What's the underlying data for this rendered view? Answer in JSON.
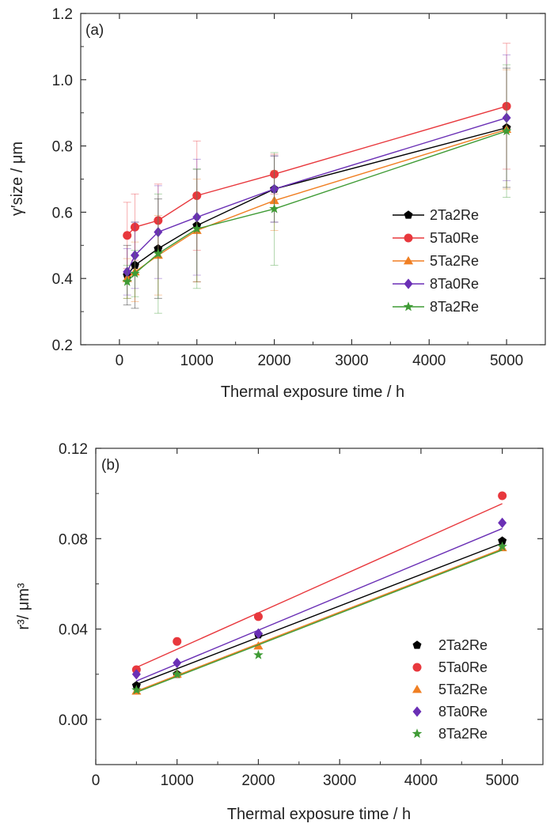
{
  "chart_data": [
    {
      "type": "line",
      "panel_label": "(a)",
      "xlabel": "Thermal exposure time / h",
      "ylabel": "γ′size / μm",
      "xlim": [
        -500,
        5500
      ],
      "ylim": [
        0.2,
        1.2
      ],
      "xticks": [
        0,
        1000,
        2000,
        3000,
        4000,
        5000
      ],
      "yticks": [
        0.2,
        0.4,
        0.6,
        0.8,
        1.0,
        1.2
      ],
      "xtick_labels": [
        "0",
        "1000",
        "2000",
        "3000",
        "4000",
        "5000"
      ],
      "ytick_labels": [
        "0.2",
        "0.4",
        "0.6",
        "0.8",
        "1.0",
        "1.2"
      ],
      "legend_position": "bottom-right",
      "error_bars": true,
      "x": [
        100,
        200,
        500,
        1000,
        2000,
        5000
      ],
      "series": [
        {
          "name": "2Ta2Re",
          "color": "#000000",
          "marker": "pentagon",
          "values": [
            0.41,
            0.44,
            0.49,
            0.56,
            0.67,
            0.855
          ],
          "errors": [
            0.09,
            0.13,
            0.15,
            0.17,
            0.1,
            0.18
          ]
        },
        {
          "name": "5Ta0Re",
          "color": "#e8383d",
          "marker": "circle",
          "values": [
            0.53,
            0.555,
            0.575,
            0.65,
            0.715,
            0.92
          ],
          "errors": [
            0.1,
            0.1,
            0.11,
            0.165,
            0.06,
            0.19
          ]
        },
        {
          "name": "5Ta2Re",
          "color": "#f07f23",
          "marker": "triangle",
          "values": [
            0.4,
            0.42,
            0.47,
            0.545,
            0.635,
            0.85
          ],
          "errors": [
            0.06,
            0.09,
            0.12,
            0.155,
            0.09,
            0.18
          ]
        },
        {
          "name": "8Ta0Re",
          "color": "#6a2fb5",
          "marker": "diamond",
          "values": [
            0.42,
            0.47,
            0.54,
            0.585,
            0.67,
            0.885
          ],
          "errors": [
            0.07,
            0.1,
            0.14,
            0.175,
            0.1,
            0.19
          ]
        },
        {
          "name": "8Ta2Re",
          "color": "#3f9b35",
          "marker": "star",
          "values": [
            0.39,
            0.415,
            0.475,
            0.55,
            0.61,
            0.845
          ],
          "errors": [
            0.05,
            0.07,
            0.18,
            0.18,
            0.17,
            0.2
          ]
        }
      ]
    },
    {
      "type": "scatter",
      "panel_label": "(b)",
      "xlabel": "Thermal exposure time / h",
      "ylabel": "r³/ μm³",
      "xlim": [
        0,
        5500
      ],
      "ylim": [
        -0.02,
        0.12
      ],
      "xticks": [
        0,
        1000,
        2000,
        3000,
        4000,
        5000
      ],
      "yticks": [
        0.0,
        0.04,
        0.08,
        0.12
      ],
      "xtick_labels": [
        "0",
        "1000",
        "2000",
        "3000",
        "4000",
        "5000"
      ],
      "ytick_labels": [
        "0.00",
        "0.04",
        "0.08",
        "0.12"
      ],
      "legend_position": "bottom-right",
      "x": [
        500,
        1000,
        2000,
        5000
      ],
      "series": [
        {
          "name": "2Ta2Re",
          "color": "#000000",
          "marker": "pentagon",
          "values": [
            0.015,
            0.02,
            0.0375,
            0.079
          ],
          "fit": [
            [
              500,
              0.0155
            ],
            [
              5000,
              0.078
            ]
          ]
        },
        {
          "name": "5Ta0Re",
          "color": "#e8383d",
          "marker": "circle",
          "values": [
            0.022,
            0.0345,
            0.0455,
            0.099
          ],
          "fit": [
            [
              500,
              0.023
            ],
            [
              5000,
              0.0955
            ]
          ]
        },
        {
          "name": "5Ta2Re",
          "color": "#f07f23",
          "marker": "triangle",
          "values": [
            0.0125,
            0.02,
            0.0325,
            0.076
          ],
          "fit": [
            [
              500,
              0.0125
            ],
            [
              5000,
              0.0755
            ]
          ]
        },
        {
          "name": "8Ta0Re",
          "color": "#6a2fb5",
          "marker": "diamond",
          "values": [
            0.02,
            0.025,
            0.038,
            0.087
          ],
          "fit": [
            [
              500,
              0.017
            ],
            [
              5000,
              0.0845
            ]
          ]
        },
        {
          "name": "8Ta2Re",
          "color": "#3f9b35",
          "marker": "star",
          "values": [
            0.013,
            0.02,
            0.0285,
            0.0765
          ],
          "fit": [
            [
              500,
              0.012
            ],
            [
              5000,
              0.075
            ]
          ]
        }
      ]
    }
  ]
}
